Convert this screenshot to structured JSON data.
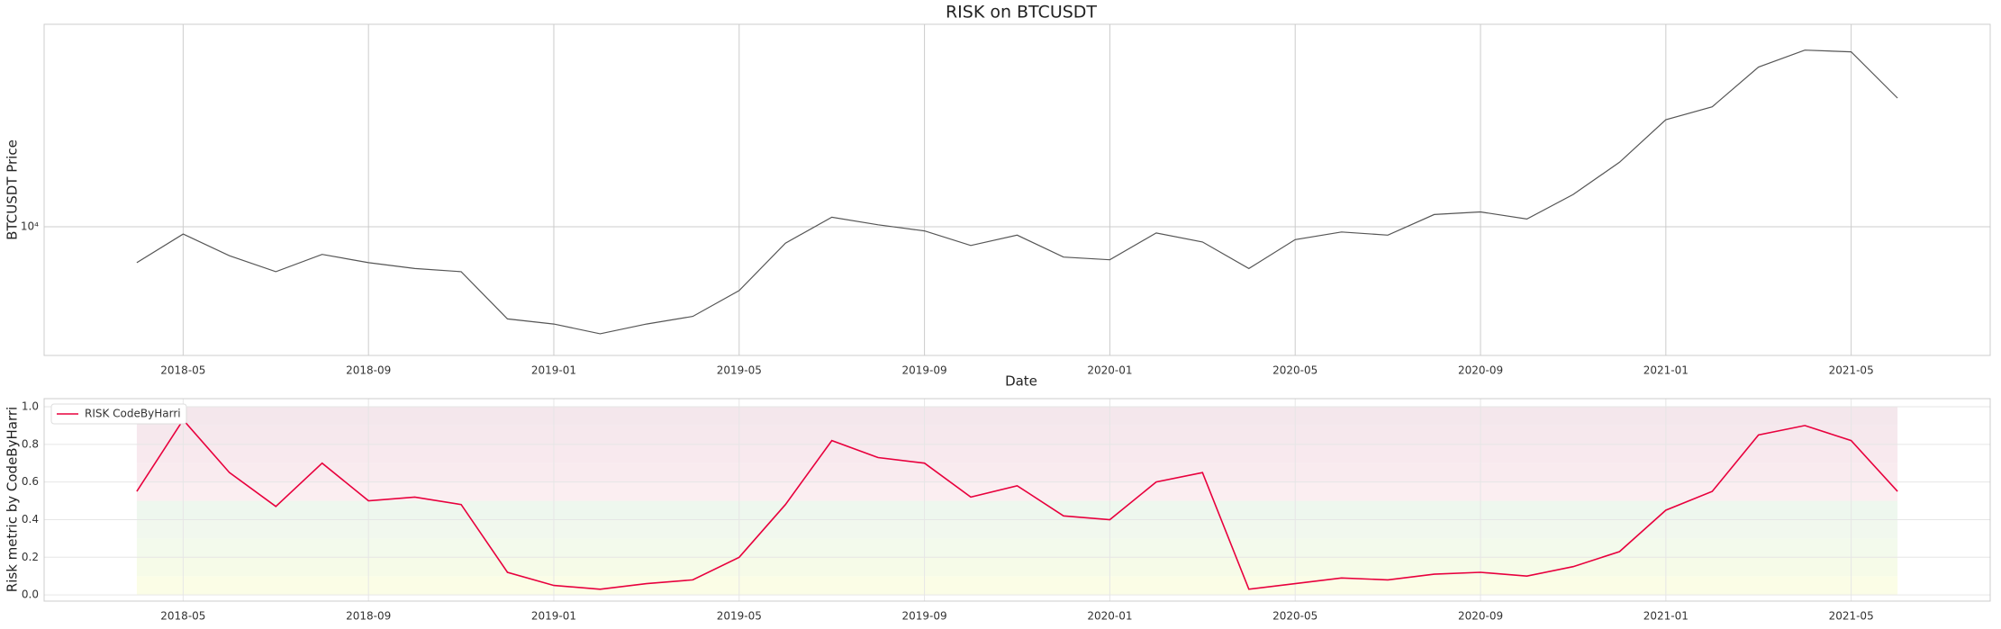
{
  "chart_data": [
    {
      "type": "line",
      "title": "RISK on BTCUSDT",
      "x_label": "Date",
      "y_label": "BTCUSDT Price",
      "log_scale": true,
      "grid": true,
      "color": "#555555",
      "x": [
        "2018-04",
        "2018-05",
        "2018-06",
        "2018-07",
        "2018-08",
        "2018-09",
        "2018-10",
        "2018-11",
        "2018-12",
        "2019-01",
        "2019-02",
        "2019-03",
        "2019-04",
        "2019-05",
        "2019-06",
        "2019-07",
        "2019-08",
        "2019-09",
        "2019-10",
        "2019-11",
        "2019-12",
        "2020-01",
        "2020-02",
        "2020-03",
        "2020-04",
        "2020-05",
        "2020-06",
        "2020-07",
        "2020-08",
        "2020-09",
        "2020-10",
        "2020-11",
        "2020-12",
        "2021-01",
        "2021-02",
        "2021-03",
        "2021-04",
        "2021-05",
        "2021-06"
      ],
      "values": [
        7000,
        9300,
        7500,
        6400,
        7600,
        7000,
        6600,
        6400,
        4000,
        3800,
        3450,
        3800,
        4100,
        5300,
        8500,
        11000,
        10200,
        9600,
        8300,
        9200,
        7400,
        7200,
        9400,
        8600,
        6600,
        8800,
        9500,
        9200,
        11300,
        11600,
        10800,
        13800,
        19000,
        29000,
        33000,
        49000,
        58000,
        57000,
        36000
      ],
      "xlim": [
        "2018-02",
        "2021-08"
      ],
      "xticks": [
        "2018-05",
        "2018-09",
        "2019-01",
        "2019-05",
        "2019-09",
        "2020-01",
        "2020-05",
        "2020-09",
        "2021-01",
        "2021-05"
      ],
      "ylim": [
        2780,
        75000
      ],
      "yticks": [
        {
          "value": 10000,
          "label": "10⁴"
        }
      ]
    },
    {
      "type": "line",
      "y_label": "Risk metric by CodeByHarri",
      "grid": true,
      "legend": "upper left",
      "x": [
        "2018-04",
        "2018-05",
        "2018-06",
        "2018-07",
        "2018-08",
        "2018-09",
        "2018-10",
        "2018-11",
        "2018-12",
        "2019-01",
        "2019-02",
        "2019-03",
        "2019-04",
        "2019-05",
        "2019-06",
        "2019-07",
        "2019-08",
        "2019-09",
        "2019-10",
        "2019-11",
        "2019-12",
        "2020-01",
        "2020-02",
        "2020-03",
        "2020-04",
        "2020-05",
        "2020-06",
        "2020-07",
        "2020-08",
        "2020-09",
        "2020-10",
        "2020-11",
        "2020-12",
        "2021-01",
        "2021-02",
        "2021-03",
        "2021-04",
        "2021-05",
        "2021-06"
      ],
      "series": [
        {
          "name": "RISK CodeByHarri",
          "color": "#e8003d",
          "values": [
            0.55,
            0.93,
            0.65,
            0.47,
            0.7,
            0.5,
            0.52,
            0.48,
            0.12,
            0.05,
            0.03,
            0.06,
            0.08,
            0.2,
            0.48,
            0.82,
            0.73,
            0.7,
            0.52,
            0.58,
            0.42,
            0.4,
            0.6,
            0.65,
            0.03,
            0.06,
            0.09,
            0.08,
            0.11,
            0.12,
            0.1,
            0.15,
            0.23,
            0.45,
            0.55,
            0.85,
            0.9,
            0.82,
            0.55
          ]
        }
      ],
      "bands": [
        {
          "range": [
            0,
            0.1
          ],
          "color": "#fbfde6"
        },
        {
          "range": [
            0.1,
            0.2
          ],
          "color": "#f6fbe8"
        },
        {
          "range": [
            0.2,
            0.3
          ],
          "color": "#f3faec"
        },
        {
          "range": [
            0.3,
            0.4
          ],
          "color": "#f1f8ee"
        },
        {
          "range": [
            0.4,
            0.5
          ],
          "color": "#eef7ee"
        },
        {
          "range": [
            0.5,
            0.6
          ],
          "color": "#fbeef1"
        },
        {
          "range": [
            0.6,
            0.7
          ],
          "color": "#f9ebef"
        },
        {
          "range": [
            0.7,
            0.8
          ],
          "color": "#f8e9ee"
        },
        {
          "range": [
            0.8,
            0.9
          ],
          "color": "#f6e8ed"
        },
        {
          "range": [
            0.9,
            1.0
          ],
          "color": "#f4e7ec"
        }
      ],
      "xlim": [
        "2018-02",
        "2021-08"
      ],
      "xticks": [
        "2018-05",
        "2018-09",
        "2019-01",
        "2019-05",
        "2019-09",
        "2020-01",
        "2020-05",
        "2020-09",
        "2021-01",
        "2021-05"
      ],
      "ylim": [
        -0.033,
        1.043
      ],
      "yticks": [
        {
          "value": 0,
          "label": "0.0"
        },
        0.2,
        0.4,
        0.6,
        0.8,
        {
          "value": 1,
          "label": "1.0"
        }
      ]
    }
  ]
}
